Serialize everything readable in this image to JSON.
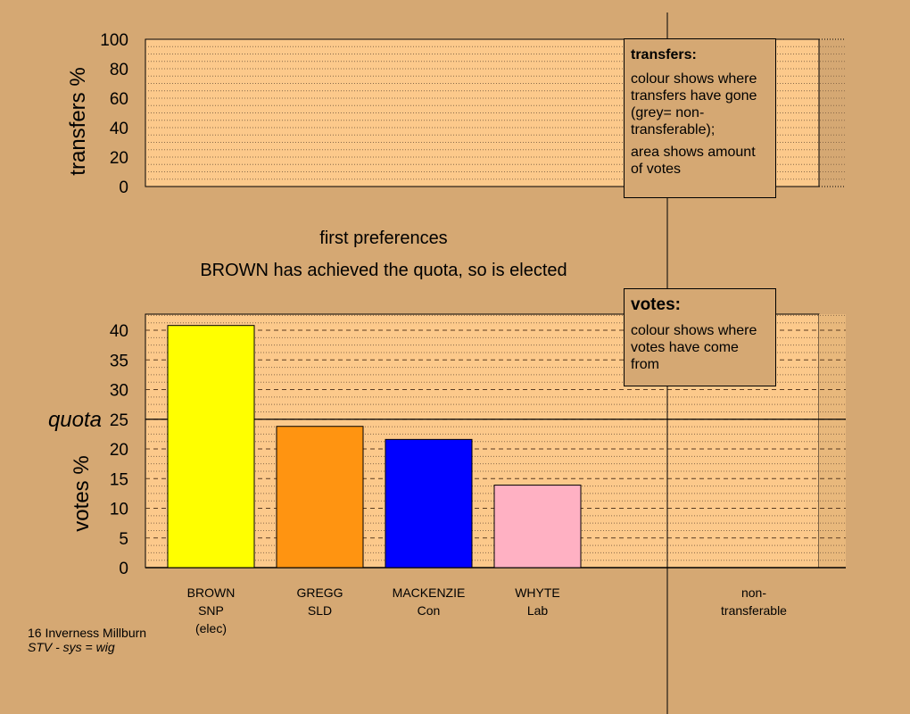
{
  "chart_data": [
    {
      "type": "bar",
      "name": "transfers",
      "ylabel": "transfers %",
      "ylim": [
        0,
        100
      ],
      "yticks": [
        0,
        20,
        40,
        60,
        80,
        100
      ],
      "series": []
    },
    {
      "type": "bar",
      "name": "votes",
      "ylabel": "votes %",
      "ylim": [
        0,
        43
      ],
      "yticks": [
        0,
        5,
        10,
        15,
        20,
        25,
        30,
        35,
        40
      ],
      "quota": 25,
      "quota_label": "quota",
      "categories": [
        [
          "BROWN",
          "SNP",
          "(elec)"
        ],
        [
          "GREGG",
          "SLD"
        ],
        [
          "MACKENZIE",
          "Con"
        ],
        [
          "WHYTE",
          "Lab"
        ]
      ],
      "values": [
        40.8,
        23.8,
        21.6,
        13.9
      ],
      "colors": [
        "#ffff00",
        "#ff9411",
        "#0000ff",
        "#ffb1c3"
      ],
      "extra_category": [
        "non-",
        "transferable"
      ]
    }
  ],
  "captions": {
    "stage": "first preferences",
    "status": "BROWN has achieved the quota, so is elected"
  },
  "legend_transfers": {
    "title": "transfers:",
    "text1": "colour shows where transfers have gone (grey= non-transferable);",
    "text2": "area shows amount of votes"
  },
  "legend_votes": {
    "title": "votes:",
    "text1": "colour shows where votes have come from"
  },
  "footer": {
    "line1": "16 Inverness Millburn",
    "line2": "STV - sys = wig"
  },
  "colors": {
    "background": "#d5a873",
    "plot_fill": "#fcc98b",
    "grid_dotted": "#8a6a4a"
  }
}
